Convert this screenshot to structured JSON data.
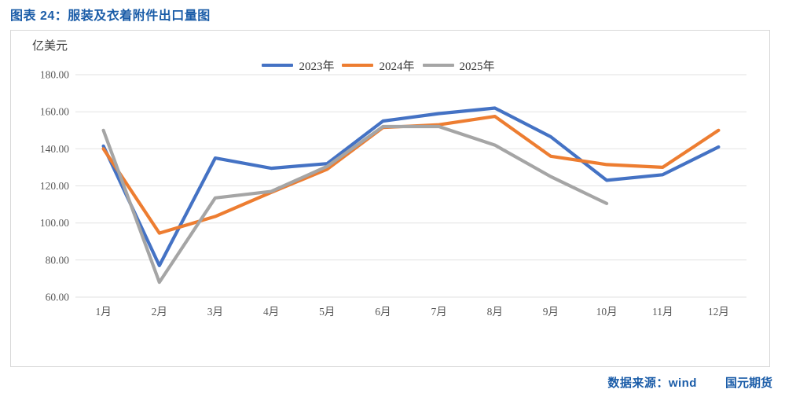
{
  "header": {
    "title": "图表 24：服装及衣着附件出口量图"
  },
  "footer": {
    "source_label": "数据来源：wind",
    "brand": "国元期货"
  },
  "chart_data": {
    "type": "line",
    "title": "服装及衣着附件出口量图",
    "ylabel": "亿美元",
    "xlabel": "",
    "categories": [
      "1月",
      "2月",
      "3月",
      "4月",
      "5月",
      "6月",
      "7月",
      "8月",
      "9月",
      "10月",
      "11月",
      "12月"
    ],
    "series": [
      {
        "name": "2023年",
        "color": "#4472C4",
        "values": [
          141.5,
          77,
          135,
          129.5,
          132,
          155,
          159,
          162,
          146.5,
          123,
          126,
          141
        ]
      },
      {
        "name": "2024年",
        "color": "#ED7D31",
        "values": [
          140,
          94.5,
          103.5,
          116.5,
          129,
          151.5,
          153,
          157.5,
          136,
          131.5,
          130,
          150
        ]
      },
      {
        "name": "2025年",
        "color": "#A5A5A5",
        "values": [
          150,
          68,
          113.5,
          117,
          130.5,
          152,
          152,
          142,
          125,
          110.5,
          null,
          null
        ]
      }
    ],
    "ylim": [
      60,
      180
    ],
    "ytick_step": 20,
    "ytick_format": "two-decimals",
    "grid": "horizontal",
    "legend_position": "top-center",
    "gridline_color": "#E2E2E2",
    "axis_text_color": "#595959"
  }
}
